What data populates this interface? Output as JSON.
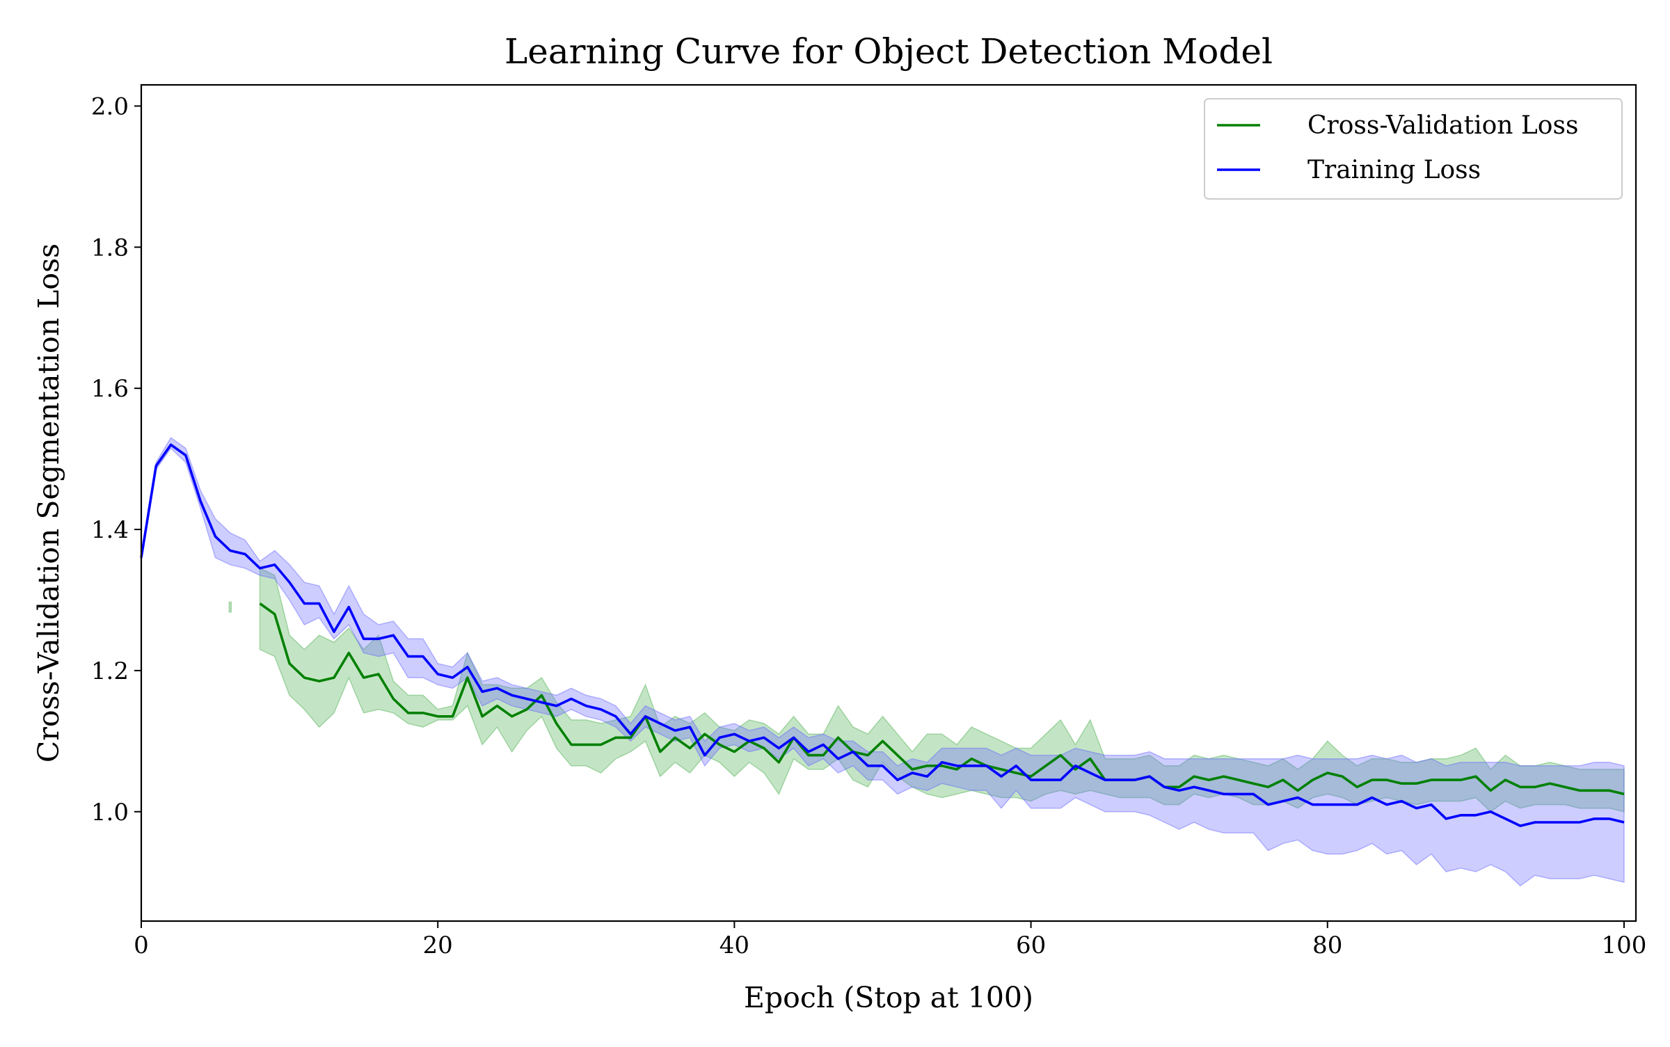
{
  "chart_data": {
    "type": "line",
    "title": "Learning Curve for Object Detection Model",
    "xlabel": "Epoch (Stop at 100)",
    "ylabel": "Cross-Validation Segmentation Loss",
    "xlim": [
      0,
      100.8
    ],
    "ylim": [
      0.845,
      2.03
    ],
    "xticks": [
      0,
      20,
      40,
      60,
      80,
      100
    ],
    "yticks": [
      1.0,
      1.2,
      1.4,
      1.6,
      1.8,
      2.0
    ],
    "xtick_labels": [
      "0",
      "20",
      "40",
      "60",
      "80",
      "100"
    ],
    "ytick_labels": [
      "1.0",
      "1.2",
      "1.4",
      "1.6",
      "1.8",
      "2.0"
    ],
    "grid": false,
    "legend_position": "top-right",
    "x": [
      0,
      1,
      2,
      3,
      4,
      5,
      6,
      7,
      8,
      9,
      10,
      11,
      12,
      13,
      14,
      15,
      16,
      17,
      18,
      19,
      20,
      21,
      22,
      23,
      24,
      25,
      26,
      27,
      28,
      29,
      30,
      31,
      32,
      33,
      34,
      35,
      36,
      37,
      38,
      39,
      40,
      41,
      42,
      43,
      44,
      45,
      46,
      47,
      48,
      49,
      50,
      51,
      52,
      53,
      54,
      55,
      56,
      57,
      58,
      59,
      60,
      61,
      62,
      63,
      64,
      65,
      66,
      67,
      68,
      69,
      70,
      71,
      72,
      73,
      74,
      75,
      76,
      77,
      78,
      79,
      80,
      81,
      82,
      83,
      84,
      85,
      86,
      87,
      88,
      89,
      90,
      91,
      92,
      93,
      94,
      95,
      96,
      97,
      98,
      99,
      100
    ],
    "series": [
      {
        "name": "Cross-Validation Loss",
        "color": "#008000",
        "band_color": "#4caf50",
        "values": [
          null,
          null,
          null,
          null,
          null,
          null,
          1.29,
          null,
          1.295,
          1.28,
          1.21,
          1.19,
          1.185,
          1.19,
          1.225,
          1.19,
          1.195,
          1.16,
          1.14,
          1.14,
          1.135,
          1.135,
          1.19,
          1.135,
          1.15,
          1.135,
          1.145,
          1.165,
          1.125,
          1.095,
          1.095,
          1.095,
          1.105,
          1.105,
          1.135,
          1.085,
          1.105,
          1.09,
          1.11,
          1.095,
          1.085,
          1.1,
          1.09,
          1.07,
          1.105,
          1.08,
          1.08,
          1.105,
          1.085,
          1.08,
          1.1,
          1.08,
          1.06,
          1.065,
          1.065,
          1.06,
          1.075,
          1.065,
          1.06,
          1.055,
          1.05,
          1.065,
          1.08,
          1.06,
          1.075,
          1.045,
          1.045,
          1.045,
          1.05,
          1.035,
          1.035,
          1.05,
          1.045,
          1.05,
          1.045,
          1.04,
          1.035,
          1.045,
          1.03,
          1.045,
          1.055,
          1.05,
          1.035,
          1.045,
          1.045,
          1.04,
          1.04,
          1.045,
          1.045,
          1.045,
          1.05,
          1.03,
          1.045,
          1.035,
          1.035,
          1.04,
          1.035,
          1.03,
          1.03,
          1.03,
          1.025
        ],
        "lower": [
          null,
          null,
          null,
          null,
          null,
          null,
          1.283,
          null,
          1.23,
          1.22,
          1.165,
          1.145,
          1.12,
          1.14,
          1.19,
          1.14,
          1.145,
          1.14,
          1.125,
          1.12,
          1.13,
          1.13,
          1.15,
          1.095,
          1.12,
          1.085,
          1.115,
          1.135,
          1.09,
          1.065,
          1.065,
          1.055,
          1.075,
          1.085,
          1.1,
          1.05,
          1.07,
          1.055,
          1.08,
          1.07,
          1.05,
          1.07,
          1.055,
          1.025,
          1.075,
          1.06,
          1.06,
          1.075,
          1.045,
          1.035,
          1.07,
          1.05,
          1.035,
          1.025,
          1.02,
          1.025,
          1.03,
          1.025,
          1.02,
          1.02,
          1.015,
          1.025,
          1.03,
          1.025,
          1.03,
          1.025,
          1.02,
          1.02,
          1.02,
          1.01,
          1.01,
          1.025,
          1.02,
          1.025,
          1.02,
          1.01,
          1.01,
          1.015,
          1.005,
          1.02,
          1.025,
          1.02,
          1.01,
          1.015,
          1.02,
          1.015,
          1.01,
          1.015,
          1.015,
          1.015,
          1.02,
          1.0,
          1.015,
          1.005,
          1.01,
          1.01,
          1.01,
          1.005,
          1.005,
          1.005,
          1.0
        ],
        "upper": [
          null,
          null,
          null,
          null,
          null,
          null,
          1.297,
          null,
          1.345,
          1.335,
          1.25,
          1.23,
          1.25,
          1.24,
          1.26,
          1.23,
          1.25,
          1.185,
          1.165,
          1.165,
          1.145,
          1.15,
          1.225,
          1.18,
          1.18,
          1.175,
          1.175,
          1.19,
          1.155,
          1.13,
          1.13,
          1.125,
          1.13,
          1.135,
          1.18,
          1.12,
          1.135,
          1.125,
          1.14,
          1.12,
          1.115,
          1.13,
          1.125,
          1.11,
          1.135,
          1.11,
          1.11,
          1.15,
          1.12,
          1.11,
          1.135,
          1.11,
          1.085,
          1.11,
          1.11,
          1.095,
          1.12,
          1.11,
          1.1,
          1.09,
          1.09,
          1.11,
          1.13,
          1.095,
          1.13,
          1.075,
          1.075,
          1.075,
          1.08,
          1.065,
          1.065,
          1.08,
          1.075,
          1.08,
          1.075,
          1.07,
          1.065,
          1.075,
          1.06,
          1.075,
          1.1,
          1.08,
          1.065,
          1.075,
          1.075,
          1.07,
          1.07,
          1.075,
          1.075,
          1.08,
          1.09,
          1.06,
          1.08,
          1.065,
          1.065,
          1.07,
          1.065,
          1.06,
          1.06,
          1.06,
          1.06
        ]
      },
      {
        "name": "Training Loss",
        "color": "#0000ff",
        "band_color": "#6666ff",
        "values": [
          1.36,
          1.49,
          1.52,
          1.505,
          1.44,
          1.39,
          1.37,
          1.365,
          1.345,
          1.35,
          1.325,
          1.295,
          1.295,
          1.255,
          1.29,
          1.245,
          1.245,
          1.25,
          1.22,
          1.22,
          1.195,
          1.19,
          1.205,
          1.17,
          1.175,
          1.165,
          1.16,
          1.155,
          1.15,
          1.16,
          1.15,
          1.145,
          1.135,
          1.11,
          1.135,
          1.125,
          1.115,
          1.12,
          1.08,
          1.105,
          1.11,
          1.1,
          1.105,
          1.09,
          1.105,
          1.085,
          1.095,
          1.075,
          1.085,
          1.065,
          1.065,
          1.045,
          1.055,
          1.05,
          1.07,
          1.065,
          1.065,
          1.065,
          1.05,
          1.065,
          1.045,
          1.045,
          1.045,
          1.065,
          1.055,
          1.045,
          1.045,
          1.045,
          1.05,
          1.035,
          1.03,
          1.035,
          1.03,
          1.025,
          1.025,
          1.025,
          1.01,
          1.015,
          1.02,
          1.01,
          1.01,
          1.01,
          1.01,
          1.02,
          1.01,
          1.015,
          1.005,
          1.01,
          0.99,
          0.995,
          0.995,
          1.0,
          0.99,
          0.98,
          0.985,
          0.985,
          0.985,
          0.985,
          0.99,
          0.99,
          0.985
        ],
        "lower": [
          1.355,
          1.485,
          1.515,
          1.495,
          1.43,
          1.36,
          1.35,
          1.345,
          1.335,
          1.33,
          1.3,
          1.265,
          1.275,
          1.245,
          1.265,
          1.225,
          1.22,
          1.225,
          1.19,
          1.19,
          1.18,
          1.175,
          1.19,
          1.15,
          1.16,
          1.15,
          1.145,
          1.14,
          1.135,
          1.145,
          1.135,
          1.13,
          1.12,
          1.1,
          1.12,
          1.11,
          1.1,
          1.105,
          1.065,
          1.09,
          1.095,
          1.085,
          1.09,
          1.075,
          1.09,
          1.065,
          1.075,
          1.055,
          1.065,
          1.045,
          1.045,
          1.025,
          1.035,
          1.03,
          1.04,
          1.035,
          1.03,
          1.03,
          1.005,
          1.03,
          1.005,
          1.005,
          1.005,
          1.02,
          1.01,
          1.0,
          1.0,
          1.0,
          0.995,
          0.985,
          0.975,
          0.985,
          0.975,
          0.97,
          0.97,
          0.97,
          0.945,
          0.955,
          0.96,
          0.945,
          0.94,
          0.94,
          0.945,
          0.955,
          0.94,
          0.945,
          0.925,
          0.94,
          0.915,
          0.92,
          0.915,
          0.925,
          0.915,
          0.895,
          0.91,
          0.905,
          0.905,
          0.905,
          0.91,
          0.905,
          0.9
        ],
        "upper": [
          1.365,
          1.495,
          1.53,
          1.515,
          1.455,
          1.415,
          1.395,
          1.385,
          1.355,
          1.37,
          1.35,
          1.325,
          1.32,
          1.28,
          1.32,
          1.28,
          1.265,
          1.27,
          1.245,
          1.245,
          1.21,
          1.205,
          1.225,
          1.185,
          1.19,
          1.18,
          1.175,
          1.17,
          1.165,
          1.175,
          1.165,
          1.16,
          1.15,
          1.125,
          1.15,
          1.14,
          1.13,
          1.135,
          1.1,
          1.12,
          1.125,
          1.115,
          1.12,
          1.105,
          1.12,
          1.105,
          1.11,
          1.1,
          1.1,
          1.085,
          1.085,
          1.065,
          1.075,
          1.07,
          1.09,
          1.09,
          1.09,
          1.09,
          1.08,
          1.09,
          1.08,
          1.08,
          1.08,
          1.09,
          1.085,
          1.08,
          1.08,
          1.08,
          1.085,
          1.075,
          1.075,
          1.075,
          1.075,
          1.075,
          1.075,
          1.075,
          1.075,
          1.075,
          1.08,
          1.075,
          1.075,
          1.075,
          1.075,
          1.08,
          1.075,
          1.08,
          1.07,
          1.075,
          1.065,
          1.07,
          1.07,
          1.07,
          1.07,
          1.065,
          1.065,
          1.065,
          1.065,
          1.065,
          1.07,
          1.07,
          1.065
        ]
      }
    ]
  }
}
